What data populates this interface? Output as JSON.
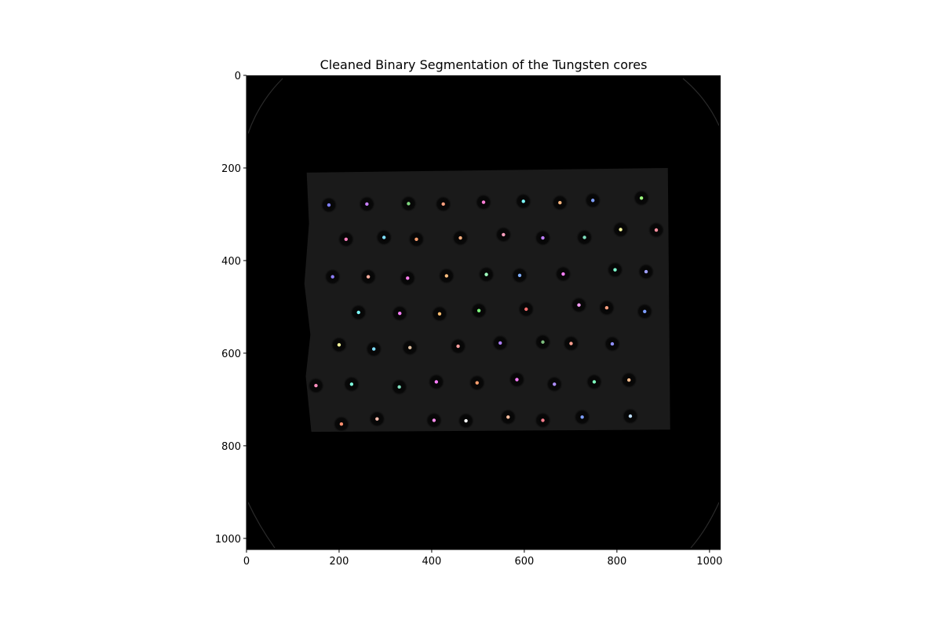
{
  "figure": {
    "title": "Cleaned Binary Segmentation of the Tungsten cores",
    "background_color": "#000000",
    "sample_color": "#1a1a1a"
  },
  "axes": {
    "x_range": [
      0,
      1024
    ],
    "y_range": [
      1024,
      0
    ],
    "x_ticks": [
      {
        "value": 0,
        "label": "0"
      },
      {
        "value": 200,
        "label": "200"
      },
      {
        "value": 400,
        "label": "400"
      },
      {
        "value": 600,
        "label": "600"
      },
      {
        "value": 800,
        "label": "800"
      },
      {
        "value": 1000,
        "label": "1000"
      }
    ],
    "y_ticks": [
      {
        "value": 0,
        "label": "0"
      },
      {
        "value": 200,
        "label": "200"
      },
      {
        "value": 400,
        "label": "400"
      },
      {
        "value": 600,
        "label": "600"
      },
      {
        "value": 800,
        "label": "800"
      },
      {
        "value": 1000,
        "label": "1000"
      }
    ]
  },
  "sample_region": {
    "outline": [
      [
        130,
        210
      ],
      [
        910,
        200
      ],
      [
        915,
        765
      ],
      [
        140,
        770
      ],
      [
        128,
        650
      ],
      [
        138,
        560
      ],
      [
        125,
        450
      ],
      [
        135,
        320
      ]
    ]
  },
  "cores": [
    {
      "x": 178,
      "y": 280,
      "color": "#7f7fff"
    },
    {
      "x": 260,
      "y": 278,
      "color": "#c87fff"
    },
    {
      "x": 350,
      "y": 277,
      "color": "#7fd77f"
    },
    {
      "x": 425,
      "y": 278,
      "color": "#ff9f7f"
    },
    {
      "x": 512,
      "y": 274,
      "color": "#ff7fd7"
    },
    {
      "x": 598,
      "y": 272,
      "color": "#7fffff"
    },
    {
      "x": 677,
      "y": 275,
      "color": "#ffb77f"
    },
    {
      "x": 748,
      "y": 270,
      "color": "#7f9fff"
    },
    {
      "x": 853,
      "y": 265,
      "color": "#9fff7f"
    },
    {
      "x": 215,
      "y": 354,
      "color": "#ff7fbf"
    },
    {
      "x": 297,
      "y": 350,
      "color": "#7fdfff"
    },
    {
      "x": 367,
      "y": 354,
      "color": "#ff9f6f"
    },
    {
      "x": 462,
      "y": 351,
      "color": "#ffaf7f"
    },
    {
      "x": 555,
      "y": 344,
      "color": "#ff9fbf"
    },
    {
      "x": 640,
      "y": 351,
      "color": "#bf7fff"
    },
    {
      "x": 730,
      "y": 350,
      "color": "#7fdfbf"
    },
    {
      "x": 808,
      "y": 333,
      "color": "#ffff9f"
    },
    {
      "x": 885,
      "y": 334,
      "color": "#ff8f9f"
    },
    {
      "x": 186,
      "y": 435,
      "color": "#8f7fff"
    },
    {
      "x": 263,
      "y": 435,
      "color": "#ffaf9f"
    },
    {
      "x": 348,
      "y": 438,
      "color": "#ff7fef"
    },
    {
      "x": 432,
      "y": 433,
      "color": "#ffbf7f"
    },
    {
      "x": 518,
      "y": 430,
      "color": "#9fffbf"
    },
    {
      "x": 590,
      "y": 432,
      "color": "#7fafff"
    },
    {
      "x": 684,
      "y": 429,
      "color": "#ff7fff"
    },
    {
      "x": 796,
      "y": 420,
      "color": "#7fffcf"
    },
    {
      "x": 863,
      "y": 424,
      "color": "#9f9fff"
    },
    {
      "x": 242,
      "y": 512,
      "color": "#7fffff"
    },
    {
      "x": 331,
      "y": 514,
      "color": "#ff7fff"
    },
    {
      "x": 417,
      "y": 515,
      "color": "#ffbf6f"
    },
    {
      "x": 502,
      "y": 508,
      "color": "#7fff7f"
    },
    {
      "x": 604,
      "y": 505,
      "color": "#ff6f6f"
    },
    {
      "x": 718,
      "y": 496,
      "color": "#ff9fff"
    },
    {
      "x": 778,
      "y": 502,
      "color": "#ff9f7f"
    },
    {
      "x": 860,
      "y": 510,
      "color": "#7f9fff"
    },
    {
      "x": 200,
      "y": 582,
      "color": "#ffff9f"
    },
    {
      "x": 275,
      "y": 591,
      "color": "#7fdfff"
    },
    {
      "x": 353,
      "y": 588,
      "color": "#dfbf9f"
    },
    {
      "x": 457,
      "y": 585,
      "color": "#ff9f9f"
    },
    {
      "x": 548,
      "y": 578,
      "color": "#af7fff"
    },
    {
      "x": 640,
      "y": 576,
      "color": "#7fbf7f"
    },
    {
      "x": 701,
      "y": 579,
      "color": "#ff9f8f"
    },
    {
      "x": 790,
      "y": 580,
      "color": "#8f8fff"
    },
    {
      "x": 150,
      "y": 670,
      "color": "#ff8fbf"
    },
    {
      "x": 227,
      "y": 667,
      "color": "#7fffdf"
    },
    {
      "x": 330,
      "y": 673,
      "color": "#7fdfbf"
    },
    {
      "x": 410,
      "y": 662,
      "color": "#ff7fff"
    },
    {
      "x": 498,
      "y": 664,
      "color": "#ff9f6f"
    },
    {
      "x": 584,
      "y": 657,
      "color": "#ff7fff"
    },
    {
      "x": 665,
      "y": 667,
      "color": "#af8fff"
    },
    {
      "x": 751,
      "y": 662,
      "color": "#7fffbf"
    },
    {
      "x": 826,
      "y": 658,
      "color": "#ffbf8f"
    },
    {
      "x": 205,
      "y": 753,
      "color": "#ff8f6f"
    },
    {
      "x": 282,
      "y": 742,
      "color": "#ffbfaf"
    },
    {
      "x": 405,
      "y": 745,
      "color": "#ff8fef"
    },
    {
      "x": 474,
      "y": 746,
      "color": "#ffffff"
    },
    {
      "x": 565,
      "y": 738,
      "color": "#ffbf9f"
    },
    {
      "x": 640,
      "y": 745,
      "color": "#ff7f8f"
    },
    {
      "x": 725,
      "y": 738,
      "color": "#7f9fff"
    },
    {
      "x": 829,
      "y": 736,
      "color": "#bfdfff"
    }
  ]
}
